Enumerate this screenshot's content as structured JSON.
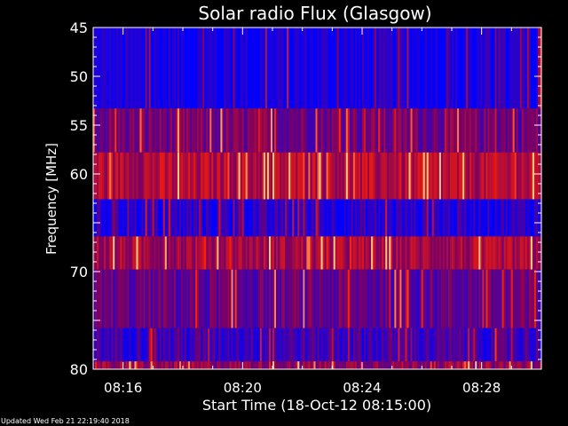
{
  "chart_data": {
    "type": "heatmap",
    "title": "Solar radio Flux (Glasgow)",
    "ylabel": "Frequency [MHz]",
    "xlabel": "Start Time (18-Oct-12 08:15:00)",
    "x_unit": "minutes after 08:15:00",
    "xlim": [
      0,
      15
    ],
    "ylim": [
      45,
      80
    ],
    "y_tick_values": [
      45,
      50,
      55,
      60,
      65,
      70,
      75,
      80
    ],
    "y_tick_labels": [
      "45",
      "50",
      "55",
      "60",
      "",
      "70",
      "",
      "80"
    ],
    "x_tick_values": [
      1,
      5,
      9,
      13
    ],
    "x_tick_labels": [
      "08:16",
      "08:20",
      "08:24",
      "08:28"
    ],
    "colormap": {
      "low": "#0000ff",
      "mid": "#800060",
      "high": "#ff2000",
      "peak": "#ffc080"
    },
    "frequency_bands": [
      {
        "from": 45,
        "to": 53.3,
        "intensity": 0.05
      },
      {
        "from": 53.3,
        "to": 57.8,
        "intensity": 0.35
      },
      {
        "from": 57.8,
        "to": 62.6,
        "intensity": 0.55
      },
      {
        "from": 62.6,
        "to": 66.4,
        "intensity": 0.12
      },
      {
        "from": 66.4,
        "to": 69.8,
        "intensity": 0.5
      },
      {
        "from": 69.8,
        "to": 75.8,
        "intensity": 0.3
      },
      {
        "from": 75.8,
        "to": 79.2,
        "intensity": 0.2
      },
      {
        "from": 79.2,
        "to": 80,
        "intensity": 0.45
      }
    ]
  },
  "footer": {
    "updated_text": "Updated Wed Feb 21 22:19:40 2018"
  }
}
